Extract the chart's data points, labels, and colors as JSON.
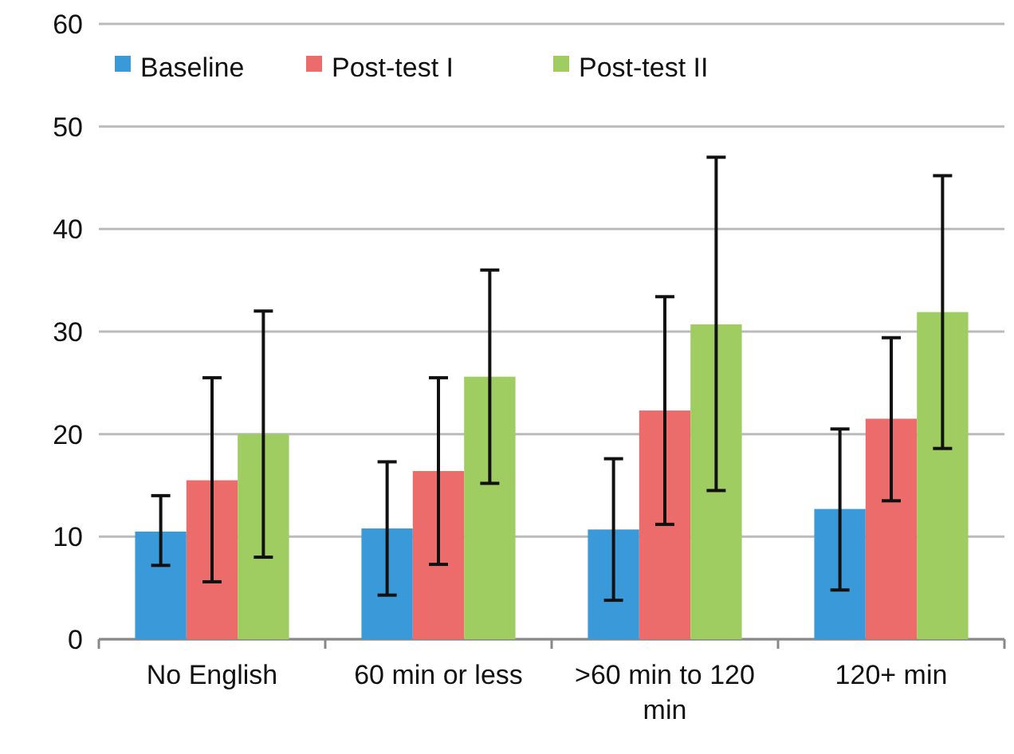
{
  "chart_data": {
    "type": "bar",
    "categories": [
      "No English",
      "60 min or less",
      ">60 min to 120 min",
      "120+ min"
    ],
    "series": [
      {
        "name": "Baseline",
        "color": "#3a9ad9",
        "values": [
          10.5,
          10.8,
          10.7,
          12.7
        ],
        "errors": [
          [
            7.2,
            14
          ],
          [
            4.3,
            17.3
          ],
          [
            3.8,
            17.6
          ],
          [
            4.8,
            20.5
          ]
        ]
      },
      {
        "name": "Post-test I",
        "color": "#ec6b6b",
        "values": [
          15.5,
          16.4,
          22.3,
          21.5
        ],
        "errors": [
          [
            5.6,
            25.5
          ],
          [
            7.3,
            25.5
          ],
          [
            11.2,
            33.4
          ],
          [
            13.5,
            29.4
          ]
        ]
      },
      {
        "name": "Post-test II",
        "color": "#9fcd62",
        "values": [
          20,
          25.6,
          30.7,
          31.9
        ],
        "errors": [
          [
            8,
            32
          ],
          [
            15.2,
            36
          ],
          [
            14.5,
            47
          ],
          [
            18.6,
            45.2
          ]
        ]
      }
    ],
    "ylim": [
      0,
      60
    ],
    "yticks": [
      0,
      10,
      20,
      30,
      40,
      50,
      60
    ],
    "grid": "y",
    "legend": "top left"
  }
}
